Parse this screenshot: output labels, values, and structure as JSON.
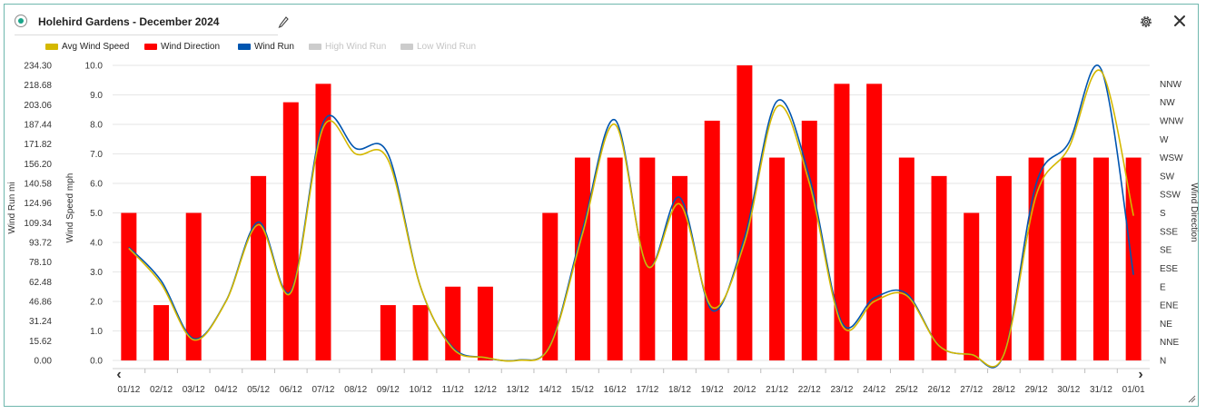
{
  "header": {
    "title": "Holehird Gardens - December 2024"
  },
  "icons": {
    "status": "status-dot-icon",
    "edit": "pencil-icon",
    "settings": "gear-icon",
    "close": "close-icon"
  },
  "colors": {
    "avg_wind_speed": "#d4b800",
    "wind_direction": "#ff0000",
    "wind_run": "#0055b0",
    "disabled": "#cccccc",
    "border": "#6fb7ae",
    "status": "#1aa58a"
  },
  "legend": [
    {
      "label": "Avg Wind Speed",
      "color": "#d4b800",
      "enabled": true
    },
    {
      "label": "Wind Direction",
      "color": "#ff0000",
      "enabled": true
    },
    {
      "label": "Wind Run",
      "color": "#0055b0",
      "enabled": true
    },
    {
      "label": "High Wind Run",
      "color": "#cccccc",
      "enabled": false
    },
    {
      "label": "Low Wind Run",
      "color": "#cccccc",
      "enabled": false
    }
  ],
  "chart_data": {
    "type": "bar",
    "title": "",
    "grid": true,
    "categories": [
      "01/12",
      "02/12",
      "03/12",
      "04/12",
      "05/12",
      "06/12",
      "07/12",
      "08/12",
      "09/12",
      "10/12",
      "11/12",
      "12/12",
      "13/12",
      "14/12",
      "15/12",
      "16/12",
      "17/12",
      "18/12",
      "19/12",
      "20/12",
      "21/12",
      "22/12",
      "23/12",
      "24/12",
      "25/12",
      "26/12",
      "27/12",
      "28/12",
      "29/12",
      "30/12",
      "31/12",
      "01/01"
    ],
    "axes": {
      "wind_run": {
        "label": "Wind Run mi",
        "ylim": [
          0,
          234.3
        ],
        "ticks": [
          "0.00",
          "15.62",
          "31.24",
          "46.86",
          "62.48",
          "78.10",
          "93.72",
          "109.34",
          "124.96",
          "140.58",
          "156.20",
          "171.82",
          "187.44",
          "203.06",
          "218.68",
          "234.30"
        ]
      },
      "wind_speed": {
        "label": "Wind Speed mph",
        "ylim": [
          0,
          10
        ],
        "ticks": [
          "0.0",
          "1.0",
          "2.0",
          "3.0",
          "4.0",
          "5.0",
          "6.0",
          "7.0",
          "8.0",
          "9.0",
          "10.0"
        ]
      },
      "wind_direction": {
        "label": "Wind Direction",
        "ticks": [
          "N",
          "NNE",
          "NE",
          "ENE",
          "E",
          "ESE",
          "SE",
          "SSE",
          "S",
          "SSW",
          "SW",
          "WSW",
          "W",
          "WNW",
          "NW",
          "NNW"
        ]
      }
    },
    "series": [
      {
        "name": "Wind Direction",
        "kind": "bar",
        "axis": "wind_direction",
        "color": "#ff0000",
        "values": [
          "SSE",
          "NE",
          "SSE",
          null,
          "SSW",
          "WNW",
          "NW",
          null,
          "NE",
          "NE",
          "ENE",
          "ENE",
          null,
          "SSE",
          "SW",
          "SW",
          "SW",
          "SSW",
          "W",
          "NNW",
          "SW",
          "W",
          "NW",
          "NW",
          "SW",
          "SSW",
          "SSE",
          "SSW",
          "SW",
          "SW",
          "SW",
          "SW"
        ]
      },
      {
        "name": "Avg Wind Speed",
        "kind": "line",
        "axis": "wind_speed",
        "color": "#d4b800",
        "values": [
          3.8,
          2.6,
          0.7,
          2.0,
          4.6,
          2.3,
          7.9,
          7.0,
          6.8,
          2.5,
          0.4,
          0.1,
          0.0,
          0.5,
          4.3,
          8.0,
          3.2,
          5.3,
          1.8,
          4.0,
          8.6,
          6.0,
          1.2,
          2.0,
          2.2,
          0.5,
          0.2,
          0.2,
          5.6,
          7.2,
          9.8,
          4.9
        ]
      },
      {
        "name": "Wind Run",
        "kind": "line",
        "axis": "wind_run",
        "color": "#0055b0",
        "values": [
          89.9,
          63.2,
          17.4,
          47.2,
          109.9,
          55.0,
          189.0,
          168.3,
          163.9,
          58.6,
          10.3,
          2.2,
          0.3,
          12.2,
          104.0,
          191.0,
          74.8,
          129.4,
          39.7,
          97.9,
          205.9,
          145.7,
          30.2,
          49.7,
          53.1,
          11.8,
          4.7,
          4.7,
          140.6,
          172.7,
          231.3,
          67.9
        ]
      }
    ],
    "nav": {
      "prev": "‹",
      "next": "›"
    }
  }
}
